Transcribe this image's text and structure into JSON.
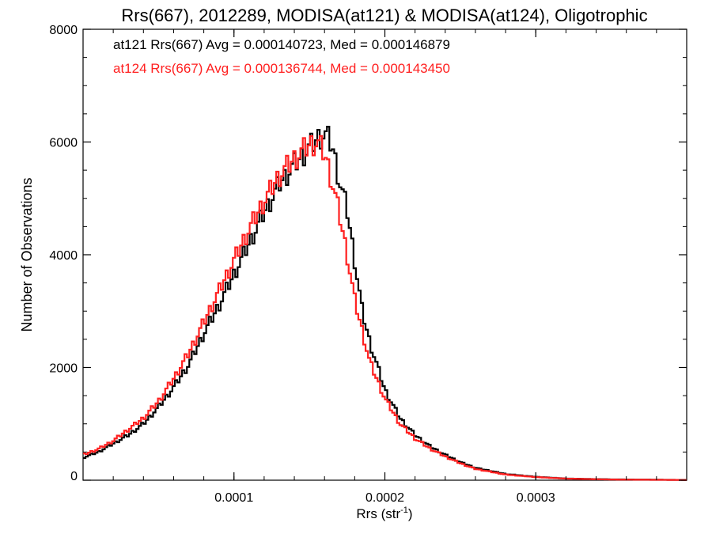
{
  "chart_data": {
    "type": "line",
    "title": "Rrs(667), 2012289, MODISA(at121) & MODISA(at124), Oligotrophic",
    "xlabel": "Rrs (str",
    "xlabel_sup": "-1",
    "xlabel_close": ")",
    "ylabel": "Number of Observations",
    "xlim": [
      0.0,
      0.0004
    ],
    "ylim": [
      0,
      8000
    ],
    "grid": false,
    "x_ticks": [
      0.0001,
      0.0002,
      0.0003
    ],
    "x_tick_labels": [
      "0.0001",
      "0.0002",
      "0.0003"
    ],
    "y_ticks": [
      0,
      2000,
      4000,
      6000,
      8000
    ],
    "y_tick_labels": [
      "0",
      "2000",
      "4000",
      "6000",
      "8000"
    ],
    "annotations": [
      {
        "text": "at121 Rrs(667) Avg = 0.000140723, Med = 0.000146879",
        "color": "#000000"
      },
      {
        "text": "at124 Rrs(667) Avg = 0.000136744, Med = 0.000143450",
        "color": "#ff2020"
      }
    ],
    "series": [
      {
        "color": "#000000",
        "x": [
          0.0,
          1e-05,
          2e-05,
          3e-05,
          4e-05,
          5e-05,
          6e-05,
          7e-05,
          8e-05,
          9e-05,
          0.0001,
          0.00011,
          0.00012,
          0.00013,
          0.00014,
          0.00015,
          0.000155,
          0.00016,
          0.000165,
          0.00017,
          0.000175,
          0.00018,
          0.000185,
          0.00019,
          0.0002,
          0.00021,
          0.00022,
          0.00023,
          0.00024,
          0.00025,
          0.00026,
          0.00028,
          0.0003,
          0.00032,
          0.00035,
          0.0004
        ],
        "y": [
          400,
          500,
          650,
          800,
          1000,
          1300,
          1650,
          2050,
          2600,
          3100,
          3650,
          4200,
          4750,
          5250,
          5600,
          5900,
          6050,
          6150,
          5950,
          5300,
          4800,
          3900,
          3000,
          2450,
          1600,
          1100,
          800,
          600,
          450,
          320,
          220,
          110,
          60,
          30,
          15,
          5
        ]
      },
      {
        "color": "#ff2020",
        "x": [
          0.0,
          1e-05,
          2e-05,
          3e-05,
          4e-05,
          5e-05,
          6e-05,
          7e-05,
          8e-05,
          9e-05,
          0.0001,
          0.00011,
          0.00012,
          0.00013,
          0.00014,
          0.00015,
          0.000155,
          0.00016,
          0.000165,
          0.00017,
          0.000175,
          0.00018,
          0.000185,
          0.00019,
          0.0002,
          0.00021,
          0.00022,
          0.00023,
          0.00024,
          0.00025,
          0.00026,
          0.00028,
          0.0003,
          0.00032,
          0.00035,
          0.0004
        ],
        "y": [
          450,
          550,
          700,
          900,
          1100,
          1400,
          1800,
          2250,
          2800,
          3350,
          3900,
          4450,
          4950,
          5400,
          5700,
          5950,
          6000,
          5800,
          5300,
          4700,
          4000,
          3200,
          2650,
          2100,
          1450,
          1000,
          740,
          560,
          420,
          300,
          200,
          100,
          55,
          28,
          12,
          4
        ]
      }
    ]
  }
}
